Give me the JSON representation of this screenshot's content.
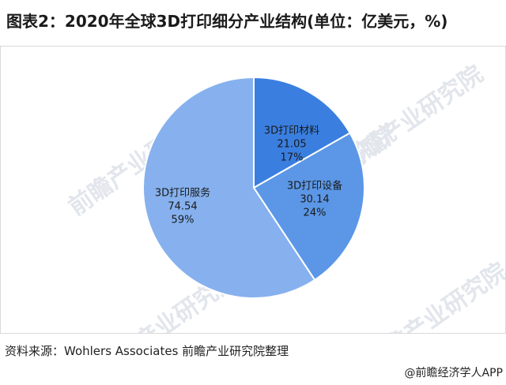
{
  "title": "图表2：2020年全球3D打印细分产业结构(单位：亿美元，%)",
  "source": "资料来源：Wohlers Associates 前瞻产业研究院整理",
  "credit": "@前瞻经济学人APP",
  "watermark": "前瞻产业研究院",
  "chart_data": {
    "type": "pie",
    "title": "图表2：2020年全球3D打印细分产业结构(单位：亿美元，%)",
    "unit": "亿美元，%",
    "slices": [
      {
        "name": "3D打印材料",
        "value": 21.05,
        "percent": "17%",
        "color": "#3a7fe0"
      },
      {
        "name": "3D打印设备",
        "value": 30.14,
        "percent": "24%",
        "color": "#5b97e6"
      },
      {
        "name": "3D打印服务",
        "value": 74.54,
        "percent": "59%",
        "color": "#86b1ee"
      }
    ]
  }
}
